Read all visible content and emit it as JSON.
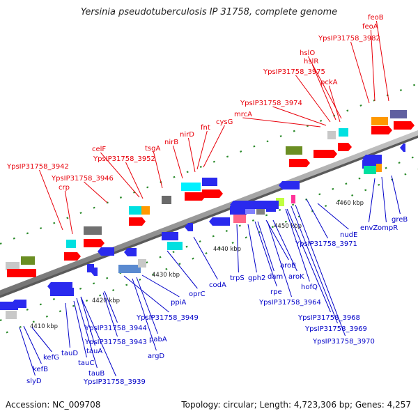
{
  "title": "Yersinia pseudotuberculosis IP 31758, complete genome",
  "footer": {
    "accession": "Accession: NC_009708",
    "summary": "Topology: circular; Length: 4,723,306 bp; Genes: 4,257"
  },
  "colors": {
    "upper_label": "#e8000a",
    "lower_label": "#0000c8",
    "backbone": "#909090"
  },
  "scale_labels": [
    "4410 kbp",
    "4420 kbp",
    "4430 kbp",
    "4440 kbp",
    "4450 kbp",
    "4460 kbp"
  ],
  "upper_labels": [
    "YpsIP31758_3942",
    "crp",
    "YpsIP31758_3946",
    "celF",
    "YpsIP31758_3952",
    "tsgA",
    "nirB",
    "nirD",
    "fnt",
    "cysG",
    "mrcA",
    "YpsIP31758_3974",
    "YpsIP31758_3975",
    "hslR",
    "hslO",
    "pckA",
    "YpsIP31758_3982",
    "feoA",
    "feoB"
  ],
  "lower_labels": [
    "slyD",
    "kefB",
    "kefG",
    "tauD",
    "tauC",
    "tauB",
    "tauA",
    "YpsIP31758_3939",
    "YpsIP31758_3943",
    "YpsIP31758_3944",
    "argD",
    "pabA",
    "YpsIP31758_3949",
    "ppiA",
    "oprC",
    "codA",
    "trpS",
    "gph2",
    "dam",
    "rpe",
    "aroB",
    "aroK",
    "YpsIP31758_3964",
    "hofQ",
    "YpsIP31758_3968",
    "YpsIP31758_3969",
    "YpsIP31758_3970",
    "YpsIP31758_3971",
    "nudE",
    "envZ",
    "ompR",
    "greB"
  ]
}
